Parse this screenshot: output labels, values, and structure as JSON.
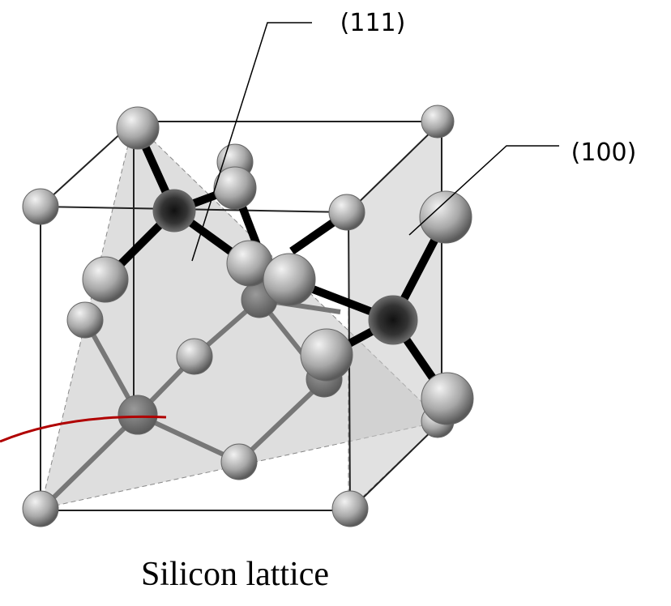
{
  "labels": {
    "plane_111": "(111)",
    "plane_100": "(100)"
  },
  "caption": "Silicon lattice"
}
